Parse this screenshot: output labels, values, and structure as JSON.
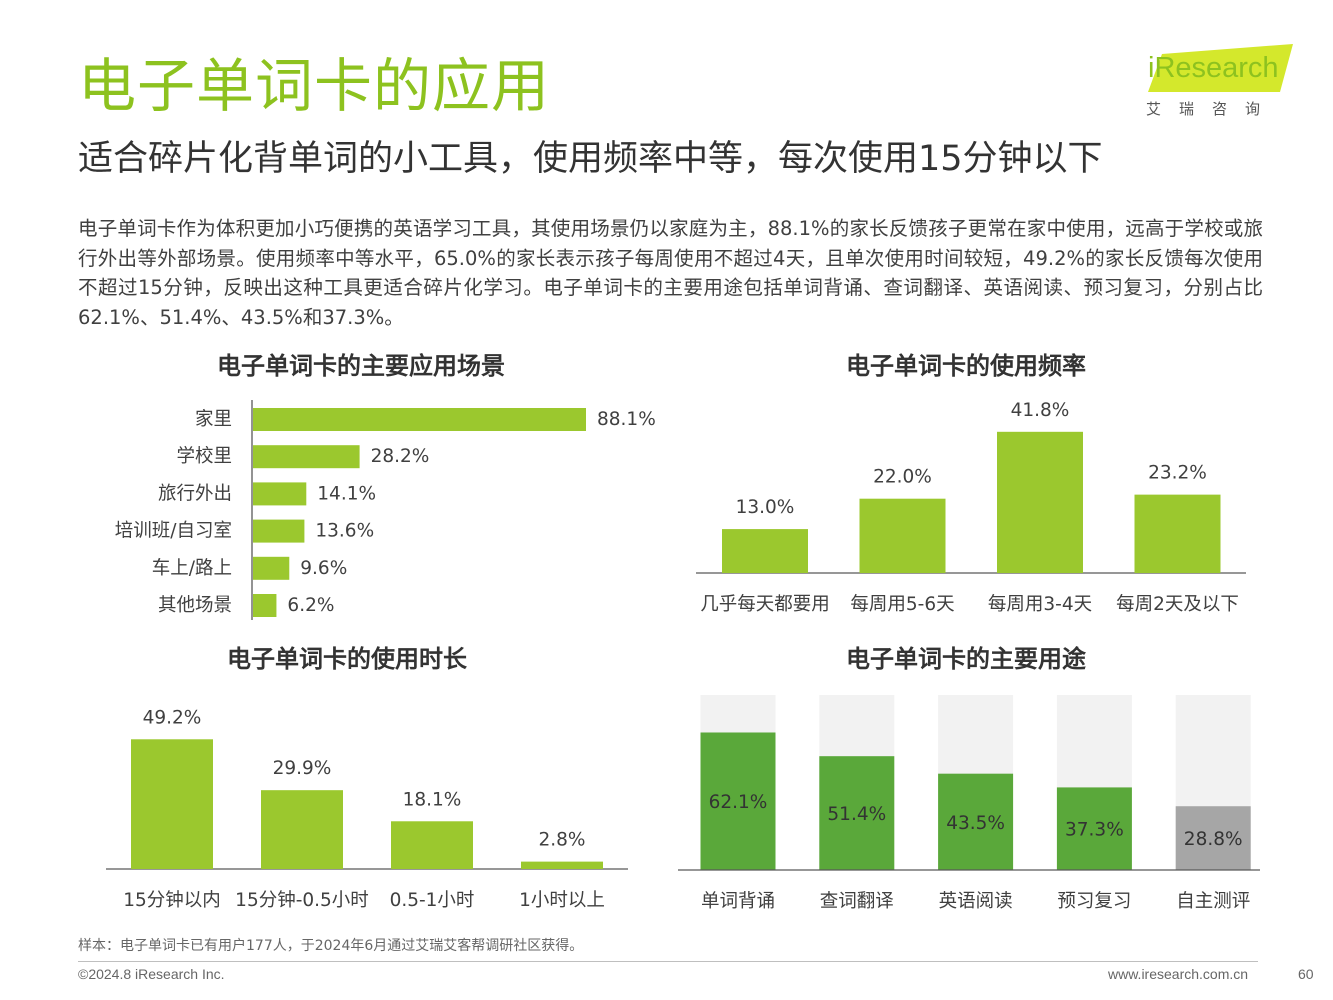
{
  "page": {
    "title": "电子单词卡的应用",
    "subtitle": "适合碎片化背单词的小工具，使用频率中等，每次使用15分钟以下",
    "body": "电子单词卡作为体积更加小巧便携的英语学习工具，其使用场景仍以家庭为主，88.1%的家长反馈孩子更常在家中使用，远高于学校或旅行外出等外部场景。使用频率中等水平，65.0%的家长表示孩子每周使用不超过4天，且单次使用时间较短，49.2%的家长反馈每次使用不超过15分钟，反映出这种工具更适合碎片化学习。电子单词卡的主要用途包括单词背诵、查词翻译、英语阅读、预习复习，分别占比62.1%、51.4%、43.5%和37.3%。",
    "footnote": "样本：电子单词卡已有用户177人，于2024年6月通过艾瑞艾客帮调研社区获得。",
    "copyright": "©2024.8 iResearch Inc.",
    "website": "www.iresearch.com.cn",
    "page_number": "60"
  },
  "logo": {
    "brand": "iResearch",
    "chinese": "艾瑞咨询",
    "color": "#d4e82c"
  },
  "colors": {
    "accent": "#8dc21f",
    "bar_green": "#9bc82e",
    "usage_dark": "#5aa83a",
    "usage_gray": "#a6a6a6",
    "usage_bg": "#f2f2f2"
  },
  "chart_data": [
    {
      "id": "scenes",
      "type": "bar",
      "orientation": "horizontal",
      "title": "电子单词卡的主要应用场景",
      "categories": [
        "家里",
        "学校里",
        "旅行外出",
        "培训班/自习室",
        "车上/路上",
        "其他场景"
      ],
      "values": [
        88.1,
        28.2,
        14.1,
        13.6,
        9.6,
        6.2
      ],
      "labels": [
        "88.1%",
        "28.2%",
        "14.1%",
        "13.6%",
        "9.6%",
        "6.2%"
      ],
      "xlim": [
        0,
        100
      ],
      "color": "#9bc82e"
    },
    {
      "id": "frequency",
      "type": "bar",
      "title": "电子单词卡的使用频率",
      "categories": [
        "几乎每天都要用",
        "每周用5-6天",
        "每周用3-4天",
        "每周2天及以下"
      ],
      "values": [
        13.0,
        22.0,
        41.8,
        23.2
      ],
      "labels": [
        "13.0%",
        "22.0%",
        "41.8%",
        "23.2%"
      ],
      "ylim": [
        0,
        45
      ],
      "color": "#9bc82e"
    },
    {
      "id": "duration",
      "type": "bar",
      "title": "电子单词卡的使用时长",
      "categories": [
        "15分钟以内",
        "15分钟-0.5小时",
        "0.5-1小时",
        "1小时以上"
      ],
      "values": [
        49.2,
        29.9,
        18.1,
        2.8
      ],
      "labels": [
        "49.2%",
        "29.9%",
        "18.1%",
        "2.8%"
      ],
      "ylim": [
        0,
        55
      ],
      "color": "#9bc82e"
    },
    {
      "id": "usage",
      "type": "bar",
      "title": "电子单词卡的主要用途",
      "categories": [
        "单词背诵",
        "查词翻译",
        "英语阅读",
        "预习复习",
        "自主测评"
      ],
      "values": [
        62.1,
        51.4,
        43.5,
        37.3,
        28.8
      ],
      "labels": [
        "62.1%",
        "51.4%",
        "43.5%",
        "37.3%",
        "28.8%"
      ],
      "ylim": [
        0,
        70
      ],
      "bar_colors": [
        "#5aa83a",
        "#5aa83a",
        "#5aa83a",
        "#5aa83a",
        "#a6a6a6"
      ]
    }
  ]
}
